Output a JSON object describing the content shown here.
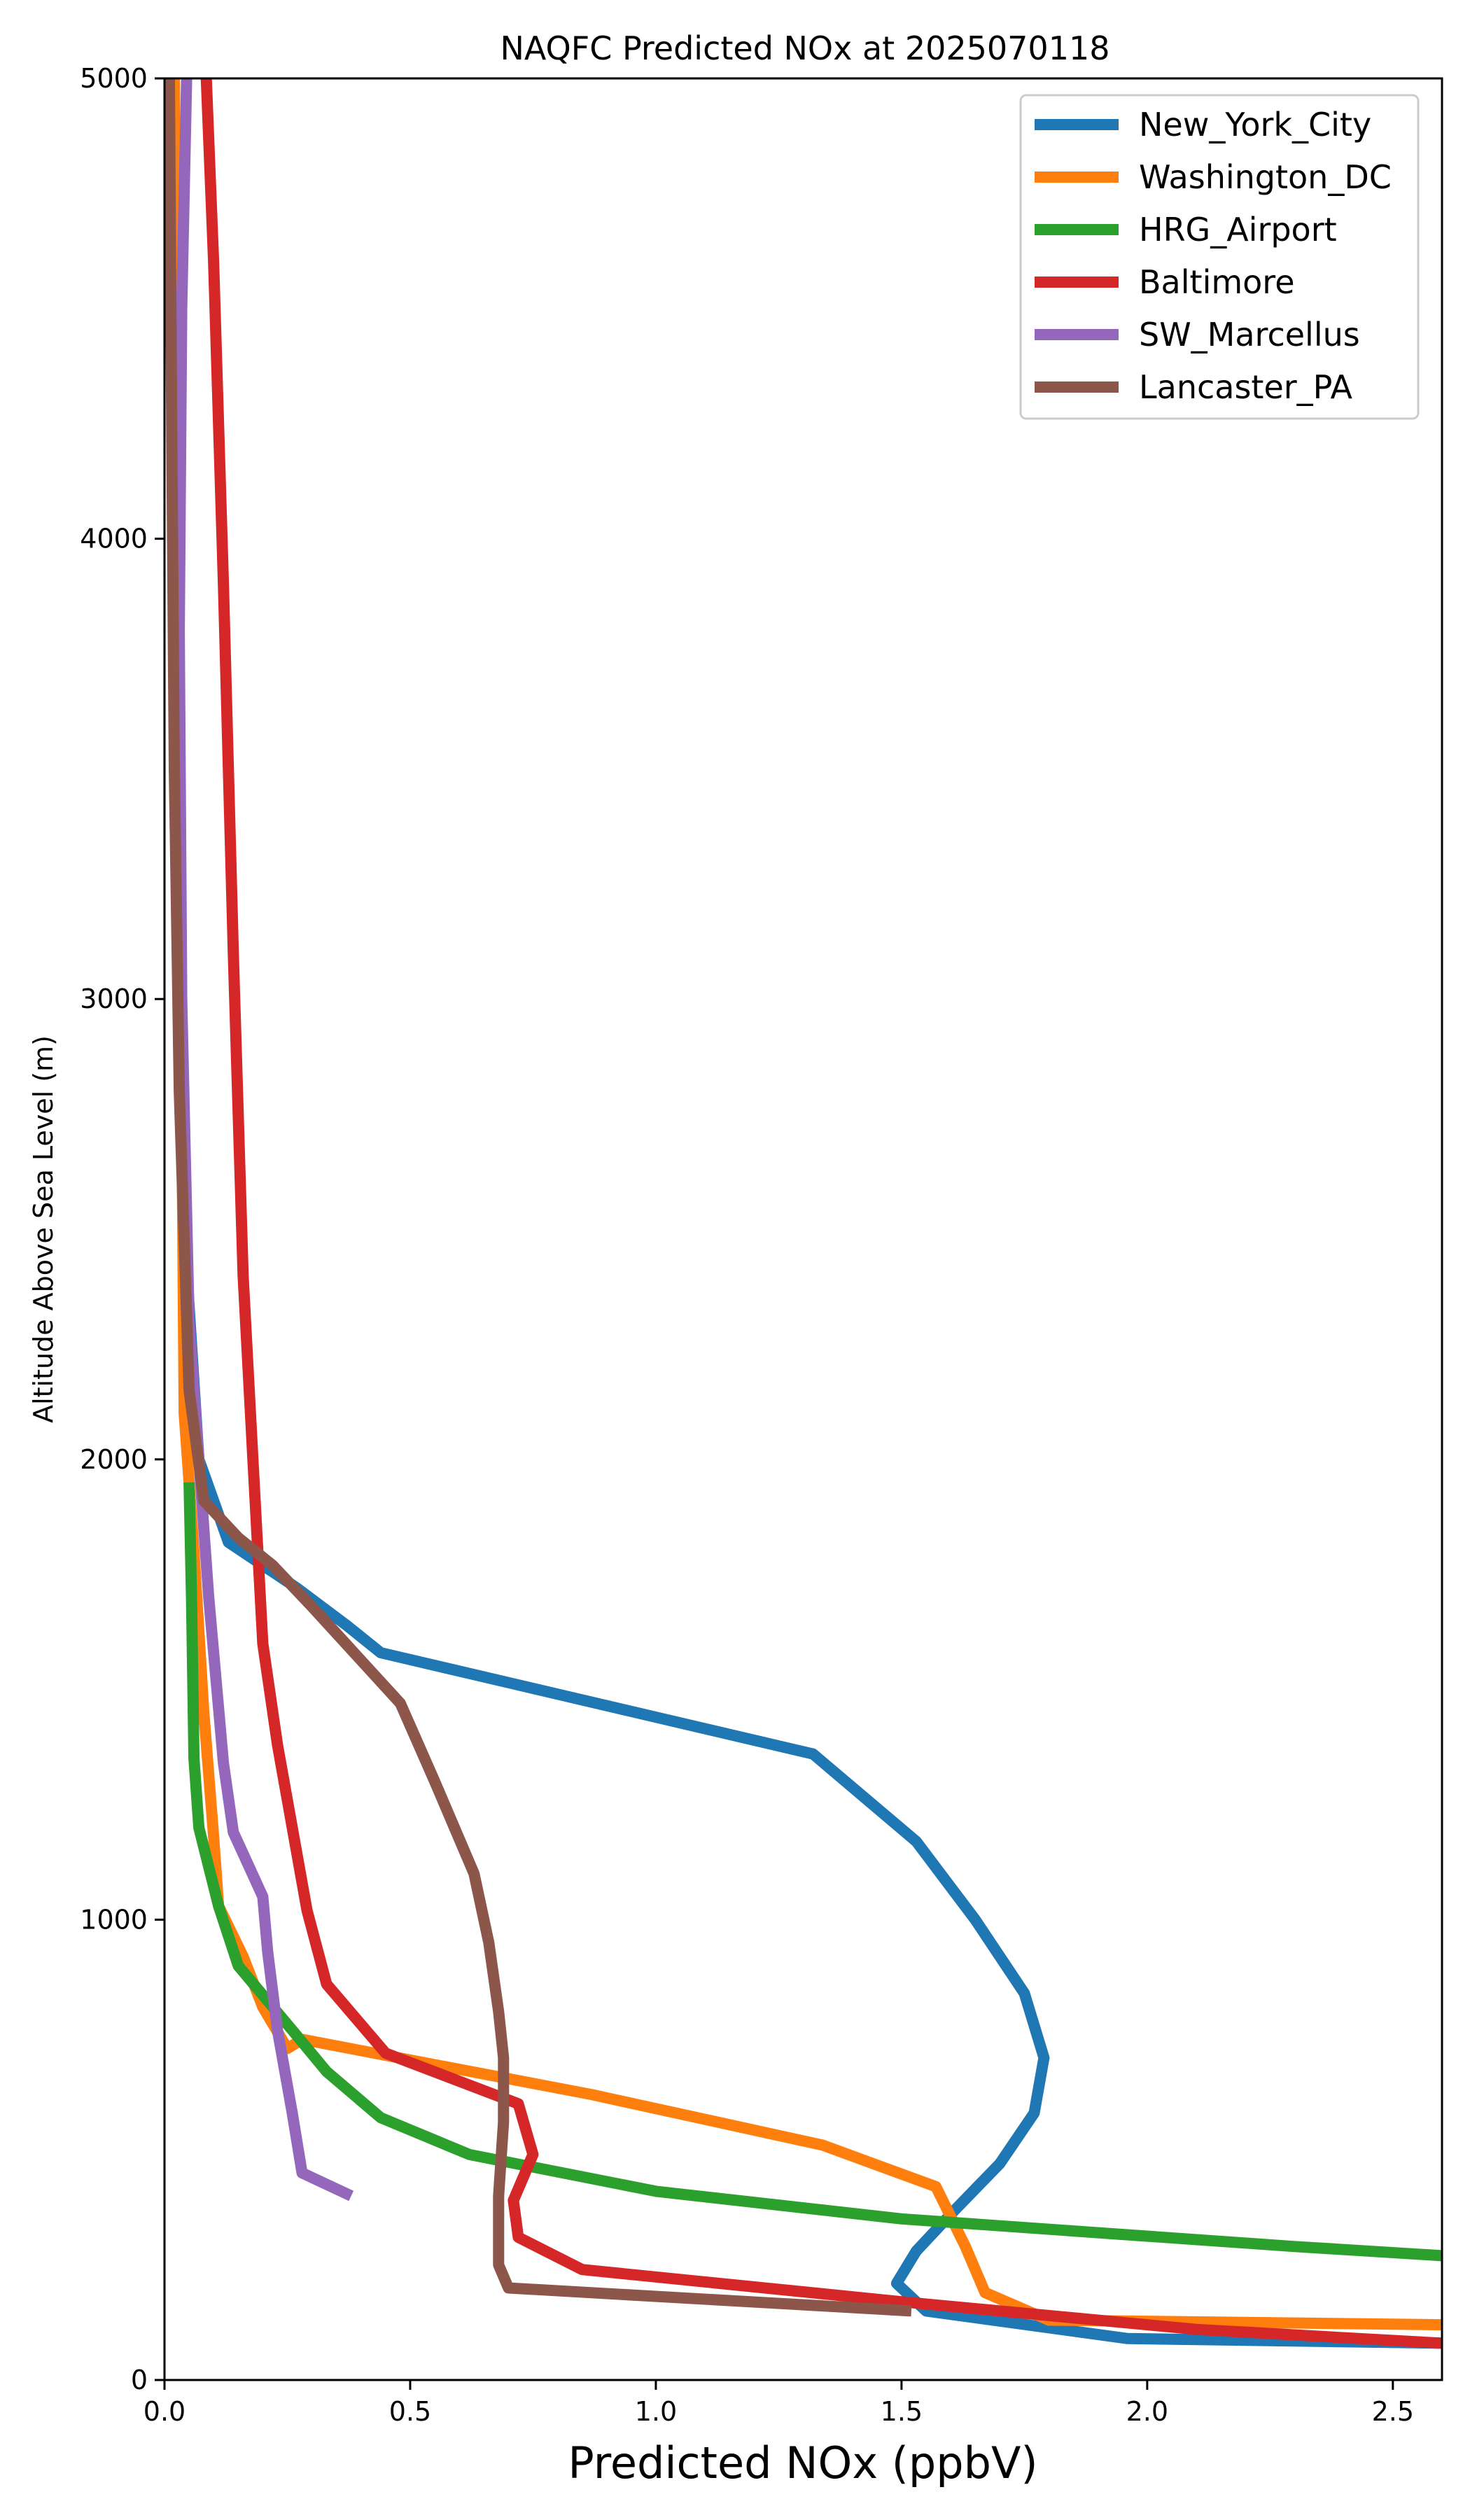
{
  "chart_data": {
    "type": "line",
    "title": "NAQFC Predicted NOx at 2025070118",
    "xlabel": "Predicted NOx (ppbV)",
    "ylabel": "Altitude Above Sea Level (m)",
    "xlim": [
      0,
      2.6
    ],
    "ylim": [
      0,
      5000
    ],
    "xticks": [
      0.0,
      0.5,
      1.0,
      1.5,
      2.0,
      2.5
    ],
    "xtick_labels": [
      "0.0",
      "0.5",
      "1.0",
      "1.5",
      "2.0",
      "2.5"
    ],
    "yticks": [
      0,
      1000,
      2000,
      3000,
      4000,
      5000
    ],
    "ytick_labels": [
      "0",
      "1000",
      "2000",
      "3000",
      "4000",
      "5000"
    ],
    "grid": false,
    "legend_position": "top-right",
    "series": [
      {
        "name": "New_York_City",
        "color": "#1f77b4",
        "x": [
          2.6,
          1.96,
          1.55,
          1.49,
          1.53,
          1.6,
          1.7,
          1.77,
          1.79,
          1.75,
          1.65,
          1.53,
          1.32,
          0.44,
          0.37,
          0.27,
          0.13,
          0.07,
          0.04,
          0.025,
          0.02,
          0.015
        ],
        "y": [
          80,
          90,
          150,
          210,
          280,
          360,
          470,
          580,
          700,
          840,
          1000,
          1170,
          1360,
          1580,
          1640,
          1720,
          1820,
          2000,
          2500,
          3500,
          4500,
          5000
        ]
      },
      {
        "name": "Washington_DC",
        "color": "#ff7f0e",
        "x": [
          2.6,
          1.8,
          1.67,
          1.63,
          1.57,
          1.34,
          0.87,
          0.28,
          0.25,
          0.2,
          0.16,
          0.11,
          0.1,
          0.08,
          0.06,
          0.04,
          0.03,
          0.02
        ],
        "y": [
          120,
          130,
          190,
          290,
          420,
          510,
          620,
          740,
          720,
          810,
          920,
          1030,
          1180,
          1450,
          1800,
          2100,
          3500,
          5000
        ]
      },
      {
        "name": "HRG_Airport",
        "color": "#2ca02c",
        "x": [
          2.6,
          2.3,
          1.9,
          1.5,
          1.0,
          0.62,
          0.44,
          0.33,
          0.26,
          0.15,
          0.11,
          0.07,
          0.06,
          0.055,
          0.05
        ],
        "y": [
          270,
          290,
          320,
          350,
          410,
          490,
          570,
          670,
          760,
          900,
          1030,
          1200,
          1350,
          1700,
          1950
        ]
      },
      {
        "name": "Baltimore",
        "color": "#d62728",
        "x": [
          2.6,
          2.1,
          1.5,
          0.85,
          0.72,
          0.71,
          0.75,
          0.72,
          0.45,
          0.33,
          0.29,
          0.23,
          0.2,
          0.18,
          0.16,
          0.14,
          0.12,
          0.1,
          0.085
        ],
        "y": [
          80,
          110,
          170,
          240,
          310,
          390,
          490,
          600,
          710,
          860,
          1020,
          1380,
          1600,
          2000,
          2400,
          3100,
          3900,
          4600,
          5000
        ]
      },
      {
        "name": "SW_Marcellus",
        "color": "#9467bd",
        "x": [
          0.38,
          0.28,
          0.26,
          0.23,
          0.21,
          0.2,
          0.14,
          0.12,
          0.09,
          0.07,
          0.05,
          0.035,
          0.03,
          0.035,
          0.045
        ],
        "y": [
          400,
          450,
          580,
          760,
          930,
          1050,
          1190,
          1340,
          1700,
          2000,
          2300,
          3000,
          3800,
          4500,
          5000
        ]
      },
      {
        "name": "Lancaster_PA",
        "color": "#8c564b",
        "x": [
          1.52,
          0.7,
          0.68,
          0.68,
          0.69,
          0.69,
          0.68,
          0.66,
          0.63,
          0.55,
          0.48,
          0.3,
          0.22,
          0.15,
          0.08,
          0.05,
          0.03,
          0.02,
          0.015,
          0.01
        ],
        "y": [
          150,
          200,
          250,
          400,
          560,
          700,
          800,
          950,
          1100,
          1300,
          1470,
          1680,
          1770,
          1830,
          1910,
          2150,
          2800,
          3500,
          4200,
          5000
        ]
      }
    ]
  }
}
